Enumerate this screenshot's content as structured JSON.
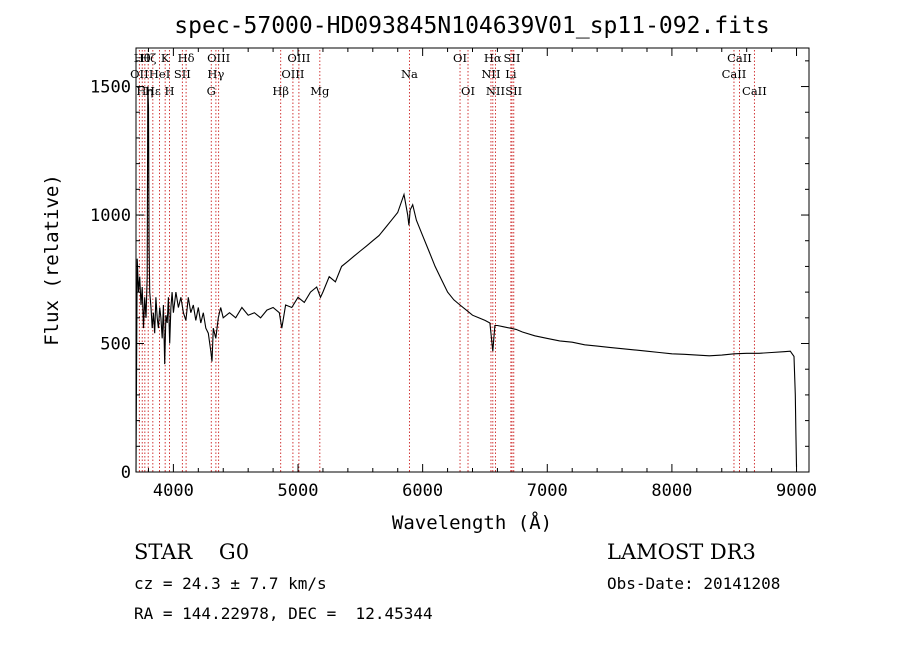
{
  "chart_data": {
    "type": "line",
    "title": "spec-57000-HD093845N104639V01_sp11-092.fits",
    "xlabel": "Wavelength (Å)",
    "ylabel": "Flux (relative)",
    "xlim": [
      3700,
      9100
    ],
    "ylim": [
      0,
      1650
    ],
    "x_ticks": [
      4000,
      5000,
      6000,
      7000,
      8000,
      9000
    ],
    "y_ticks": [
      0,
      500,
      1000,
      1500
    ],
    "grid": false,
    "colors": {
      "spectrum": "#000000",
      "line_markers": "#cc2222",
      "axes": "#000000"
    },
    "series": [
      {
        "values": [
          [
            3700,
            0
          ],
          [
            3705,
            420
          ],
          [
            3710,
            830
          ],
          [
            3720,
            700
          ],
          [
            3730,
            760
          ],
          [
            3740,
            650
          ],
          [
            3750,
            720
          ],
          [
            3760,
            560
          ],
          [
            3770,
            680
          ],
          [
            3780,
            600
          ],
          [
            3790,
            760
          ],
          [
            3795,
            1500
          ],
          [
            3800,
            1420
          ],
          [
            3805,
            880
          ],
          [
            3810,
            700
          ],
          [
            3820,
            640
          ],
          [
            3830,
            560
          ],
          [
            3840,
            620
          ],
          [
            3850,
            540
          ],
          [
            3860,
            680
          ],
          [
            3870,
            600
          ],
          [
            3880,
            560
          ],
          [
            3890,
            640
          ],
          [
            3900,
            600
          ],
          [
            3910,
            520
          ],
          [
            3920,
            650
          ],
          [
            3930,
            420
          ],
          [
            3940,
            610
          ],
          [
            3950,
            580
          ],
          [
            3960,
            680
          ],
          [
            3970,
            500
          ],
          [
            3980,
            640
          ],
          [
            3990,
            700
          ],
          [
            4000,
            620
          ],
          [
            4020,
            700
          ],
          [
            4040,
            640
          ],
          [
            4060,
            680
          ],
          [
            4080,
            620
          ],
          [
            4100,
            590
          ],
          [
            4120,
            680
          ],
          [
            4140,
            620
          ],
          [
            4160,
            650
          ],
          [
            4180,
            590
          ],
          [
            4200,
            640
          ],
          [
            4220,
            580
          ],
          [
            4240,
            620
          ],
          [
            4260,
            560
          ],
          [
            4280,
            540
          ],
          [
            4300,
            470
          ],
          [
            4310,
            430
          ],
          [
            4320,
            560
          ],
          [
            4340,
            520
          ],
          [
            4360,
            600
          ],
          [
            4380,
            640
          ],
          [
            4400,
            600
          ],
          [
            4450,
            620
          ],
          [
            4500,
            600
          ],
          [
            4550,
            640
          ],
          [
            4600,
            610
          ],
          [
            4650,
            620
          ],
          [
            4700,
            600
          ],
          [
            4750,
            630
          ],
          [
            4800,
            640
          ],
          [
            4850,
            620
          ],
          [
            4870,
            560
          ],
          [
            4880,
            590
          ],
          [
            4900,
            650
          ],
          [
            4950,
            640
          ],
          [
            5000,
            680
          ],
          [
            5050,
            660
          ],
          [
            5100,
            700
          ],
          [
            5150,
            720
          ],
          [
            5180,
            680
          ],
          [
            5200,
            700
          ],
          [
            5250,
            760
          ],
          [
            5300,
            740
          ],
          [
            5350,
            800
          ],
          [
            5400,
            820
          ],
          [
            5450,
            840
          ],
          [
            5500,
            860
          ],
          [
            5550,
            880
          ],
          [
            5600,
            900
          ],
          [
            5650,
            920
          ],
          [
            5700,
            950
          ],
          [
            5750,
            980
          ],
          [
            5800,
            1010
          ],
          [
            5850,
            1080
          ],
          [
            5880,
            1000
          ],
          [
            5890,
            960
          ],
          [
            5900,
            1020
          ],
          [
            5920,
            1040
          ],
          [
            5950,
            980
          ],
          [
            6000,
            920
          ],
          [
            6050,
            860
          ],
          [
            6100,
            800
          ],
          [
            6150,
            750
          ],
          [
            6200,
            700
          ],
          [
            6250,
            670
          ],
          [
            6300,
            650
          ],
          [
            6350,
            630
          ],
          [
            6400,
            610
          ],
          [
            6450,
            600
          ],
          [
            6500,
            590
          ],
          [
            6540,
            580
          ],
          [
            6563,
            470
          ],
          [
            6580,
            570
          ],
          [
            6600,
            570
          ],
          [
            6650,
            565
          ],
          [
            6700,
            560
          ],
          [
            6750,
            555
          ],
          [
            6800,
            545
          ],
          [
            6900,
            530
          ],
          [
            7000,
            520
          ],
          [
            7100,
            510
          ],
          [
            7200,
            505
          ],
          [
            7300,
            495
          ],
          [
            7400,
            490
          ],
          [
            7500,
            485
          ],
          [
            7600,
            480
          ],
          [
            7700,
            475
          ],
          [
            7800,
            470
          ],
          [
            7900,
            465
          ],
          [
            8000,
            460
          ],
          [
            8100,
            458
          ],
          [
            8200,
            455
          ],
          [
            8300,
            452
          ],
          [
            8400,
            455
          ],
          [
            8500,
            460
          ],
          [
            8600,
            462
          ],
          [
            8700,
            462
          ],
          [
            8800,
            465
          ],
          [
            8900,
            468
          ],
          [
            8950,
            470
          ],
          [
            8980,
            450
          ],
          [
            8990,
            300
          ],
          [
            8995,
            150
          ],
          [
            9000,
            20
          ]
        ]
      }
    ],
    "line_markers": [
      {
        "x": 3727,
        "labels": [
          "OII"
        ],
        "row": 2
      },
      {
        "x": 3750,
        "labels": [
          "Hθ"
        ],
        "row": 1
      },
      {
        "x": 3771,
        "labels": [
          "Hη"
        ],
        "row": 3
      },
      {
        "x": 3798,
        "labels": [
          "Hζ"
        ],
        "row": 1
      },
      {
        "x": 3835,
        "labels": [
          "Hε"
        ],
        "row": 3
      },
      {
        "x": 3889,
        "labels": [
          "HeI"
        ],
        "row": 2
      },
      {
        "x": 3934,
        "labels": [
          "K"
        ],
        "row": 1
      },
      {
        "x": 3969,
        "labels": [
          "H"
        ],
        "row": 3
      },
      {
        "x": 4072,
        "labels": [
          "SII"
        ],
        "row": 2
      },
      {
        "x": 4102,
        "labels": [
          "Hδ"
        ],
        "row": 1
      },
      {
        "x": 4304,
        "labels": [
          "G"
        ],
        "row": 3
      },
      {
        "x": 4341,
        "labels": [
          "Hγ"
        ],
        "row": 2
      },
      {
        "x": 4363,
        "labels": [
          "OIII"
        ],
        "row": 1
      },
      {
        "x": 4861,
        "labels": [
          "Hβ"
        ],
        "row": 3
      },
      {
        "x": 4959,
        "labels": [
          "OIII"
        ],
        "row": 2
      },
      {
        "x": 5007,
        "labels": [
          "OIII"
        ],
        "row": 1
      },
      {
        "x": 5175,
        "labels": [
          "Mg"
        ],
        "row": 3
      },
      {
        "x": 5894,
        "labels": [
          "Na"
        ],
        "row": 2
      },
      {
        "x": 6300,
        "labels": [
          "OI"
        ],
        "row": 1
      },
      {
        "x": 6364,
        "labels": [
          "OI"
        ],
        "row": 3
      },
      {
        "x": 6548,
        "labels": [
          "NII"
        ],
        "row": 2
      },
      {
        "x": 6563,
        "labels": [
          "Hα"
        ],
        "row": 1
      },
      {
        "x": 6584,
        "labels": [
          "NII"
        ],
        "row": 3
      },
      {
        "x": 6708,
        "labels": [
          "Li"
        ],
        "row": 2
      },
      {
        "x": 6717,
        "labels": [
          "SII"
        ],
        "row": 1
      },
      {
        "x": 6731,
        "labels": [
          "SII"
        ],
        "row": 3
      },
      {
        "x": 8498,
        "labels": [
          "CaII"
        ],
        "row": 2
      },
      {
        "x": 8542,
        "labels": [
          "CaII"
        ],
        "row": 1
      },
      {
        "x": 8662,
        "labels": [
          "CaII"
        ],
        "row": 3
      }
    ]
  },
  "info": {
    "class_line": "STAR    G0",
    "survey": "LAMOST DR3",
    "cz_line": "cz = 24.3 ± 7.7 km/s",
    "obs_date": "Obs-Date: 20141208",
    "coords": "RA = 144.22978, DEC =  12.45344"
  }
}
